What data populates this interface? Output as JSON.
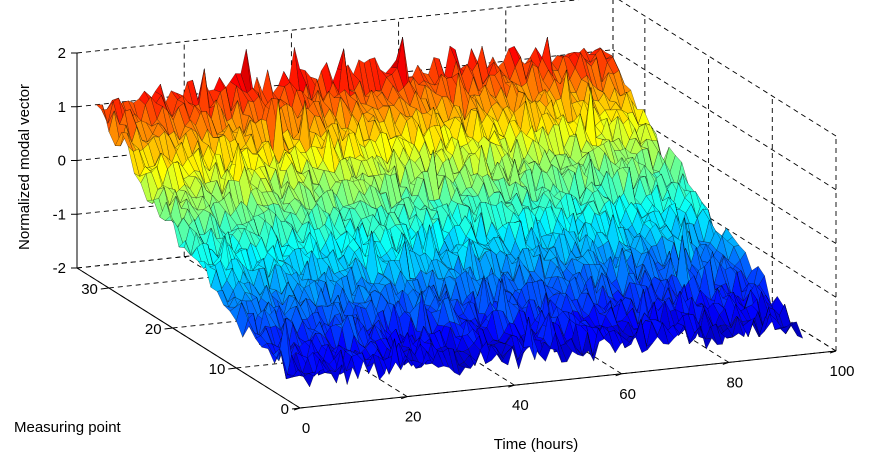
{
  "chart_data": {
    "type": "surface3d",
    "xlabel": "Time (hours)",
    "ylabel": "Measuring point",
    "zlabel": "Normalized modal vector",
    "xlim": [
      0,
      100
    ],
    "ylim": [
      0,
      35
    ],
    "zlim": [
      -2,
      2
    ],
    "xticks": [
      "0",
      "20",
      "40",
      "60",
      "80",
      "100"
    ],
    "yticks": [
      "0",
      "10",
      "20",
      "30"
    ],
    "zticks": [
      "2",
      "1",
      "0",
      "-1",
      "-2"
    ],
    "grid": true,
    "colormap": "jet",
    "x_range": [
      0,
      95
    ],
    "y_range": [
      1,
      32
    ],
    "mean_profile": [
      {
        "measuring_point": 1,
        "value": -1.55
      },
      {
        "measuring_point": 4,
        "value": -1.45
      },
      {
        "measuring_point": 8,
        "value": -1.2
      },
      {
        "measuring_point": 12,
        "value": -0.9
      },
      {
        "measuring_point": 16,
        "value": -0.55
      },
      {
        "measuring_point": 20,
        "value": -0.15
      },
      {
        "measuring_point": 24,
        "value": 0.25
      },
      {
        "measuring_point": 28,
        "value": 0.8
      },
      {
        "measuring_point": 32,
        "value": 1.35
      }
    ],
    "noise_amplitude": 0.25
  }
}
